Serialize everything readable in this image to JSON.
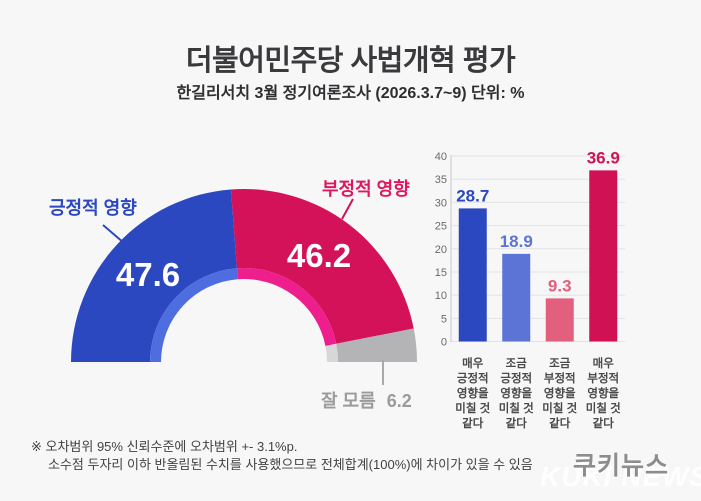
{
  "header": {
    "title": "더불어민주당 사법개혁 평가",
    "subtitle": "한길리서치 3월 정기여론조사 (2026.3.7~9) 단위: %"
  },
  "chart_data": [
    {
      "type": "pie",
      "variant": "semi-donut",
      "unit": "%",
      "slices": [
        {
          "label": "긍정적 영향",
          "value": 47.6,
          "color": "#2b48c0",
          "rim_color": "#4e6ee0",
          "label_color": "#2b48c0"
        },
        {
          "label": "부정적 영향",
          "value": 46.2,
          "color": "#d4125a",
          "rim_color": "#ee1f8d",
          "label_color": "#dd1760"
        },
        {
          "label": "잘 모름",
          "value": 6.2,
          "color": "#b4b3b6",
          "rim_color": "#d7d6d9",
          "label_color": "#9b9b9d"
        }
      ]
    },
    {
      "type": "bar",
      "unit": "%",
      "categories": [
        [
          "매우",
          "긍정적",
          "영향을",
          "미칠 것",
          "같다"
        ],
        [
          "조금",
          "긍정적",
          "영향을",
          "미칠 것",
          "같다"
        ],
        [
          "조금",
          "부정적",
          "영향을",
          "미칠 것",
          "같다"
        ],
        [
          "매우",
          "부정적",
          "영향을",
          "미칠 것",
          "같다"
        ]
      ],
      "values": [
        28.7,
        18.9,
        9.3,
        36.9
      ],
      "bar_colors": [
        "#2b48c0",
        "#5b74d6",
        "#e2607e",
        "#d01154"
      ],
      "ylim": [
        0,
        40
      ],
      "yticks": [
        0,
        5,
        10,
        15,
        20,
        25,
        30,
        35,
        40
      ],
      "grid": true,
      "legend": null
    }
  ],
  "footnote": {
    "line1": "※ 오차범위 95% 신뢰수준에 오차범위 +- 3.1%p.",
    "line2": "소수점 두자리 이하 반올림된 수치를 사용했으므로 전체합계(100%)에 차이가 있을 수 있음"
  },
  "branding": {
    "logo": "쿠키뉴스",
    "watermark": "KUKI NEWS"
  }
}
